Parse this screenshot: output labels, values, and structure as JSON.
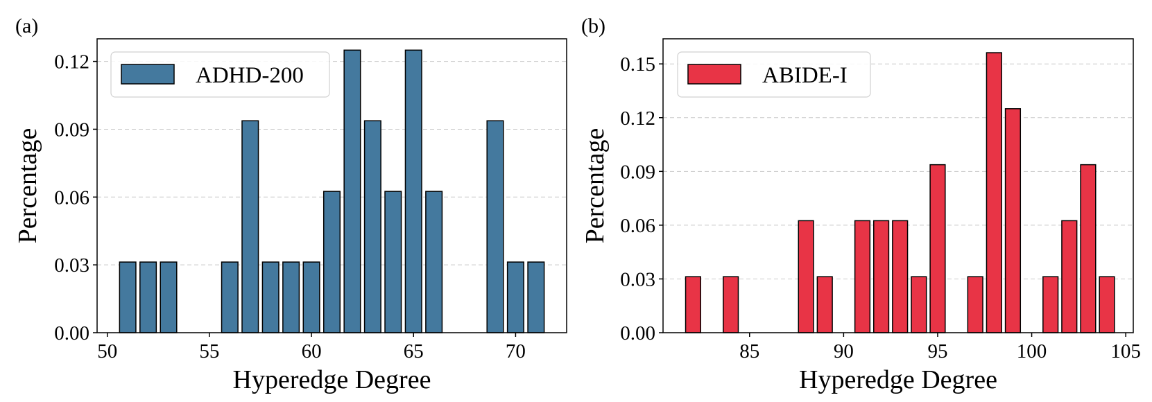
{
  "chart_data": [
    {
      "type": "bar",
      "panel_label": "(a)",
      "xlabel": "Hyperedge Degree",
      "ylabel": "Percentage",
      "xlim": [
        49.5,
        72.5
      ],
      "ylim": [
        0,
        0.13
      ],
      "xticks": [
        50,
        55,
        60,
        65,
        70
      ],
      "xtick_labels": [
        "50",
        "55",
        "60",
        "65",
        "70"
      ],
      "yticks": [
        0,
        0.03,
        0.06,
        0.09,
        0.12
      ],
      "ytick_labels": [
        "0.00",
        "0.03",
        "0.06",
        "0.09",
        "0.12"
      ],
      "grid": "y-dashed",
      "legend": {
        "label": "ADHD-200",
        "position": "top-left"
      },
      "bar_width": 0.8,
      "color": "#44799e",
      "x": [
        51,
        52,
        53,
        56,
        57,
        58,
        59,
        60,
        61,
        62,
        63,
        64,
        65,
        66,
        69,
        70,
        71
      ],
      "values": [
        0.03125,
        0.03125,
        0.03125,
        0.03125,
        0.09375,
        0.03125,
        0.03125,
        0.03125,
        0.0625,
        0.125,
        0.09375,
        0.0625,
        0.125,
        0.0625,
        0.09375,
        0.03125,
        0.03125
      ]
    },
    {
      "type": "bar",
      "panel_label": "(b)",
      "xlabel": "Hyperedge Degree",
      "ylabel": "Percentage",
      "xlim": [
        80.4,
        105.4
      ],
      "ylim": [
        0,
        0.164
      ],
      "xticks": [
        85,
        90,
        95,
        100,
        105
      ],
      "xtick_labels": [
        "85",
        "90",
        "95",
        "100",
        "105"
      ],
      "yticks": [
        0,
        0.03,
        0.06,
        0.09,
        0.12,
        0.15
      ],
      "ytick_labels": [
        "0.00",
        "0.03",
        "0.06",
        "0.09",
        "0.12",
        "0.15"
      ],
      "grid": "y-dashed",
      "legend": {
        "label": "ABIDE-I",
        "position": "top-left"
      },
      "bar_width": 0.8,
      "color": "#e83446",
      "x": [
        82,
        84,
        88,
        89,
        91,
        92,
        93,
        94,
        95,
        97,
        98,
        99,
        101,
        102,
        103,
        104
      ],
      "values": [
        0.03125,
        0.03125,
        0.0625,
        0.03125,
        0.0625,
        0.0625,
        0.0625,
        0.03125,
        0.09375,
        0.03125,
        0.15625,
        0.125,
        0.03125,
        0.0625,
        0.09375,
        0.03125
      ]
    }
  ]
}
